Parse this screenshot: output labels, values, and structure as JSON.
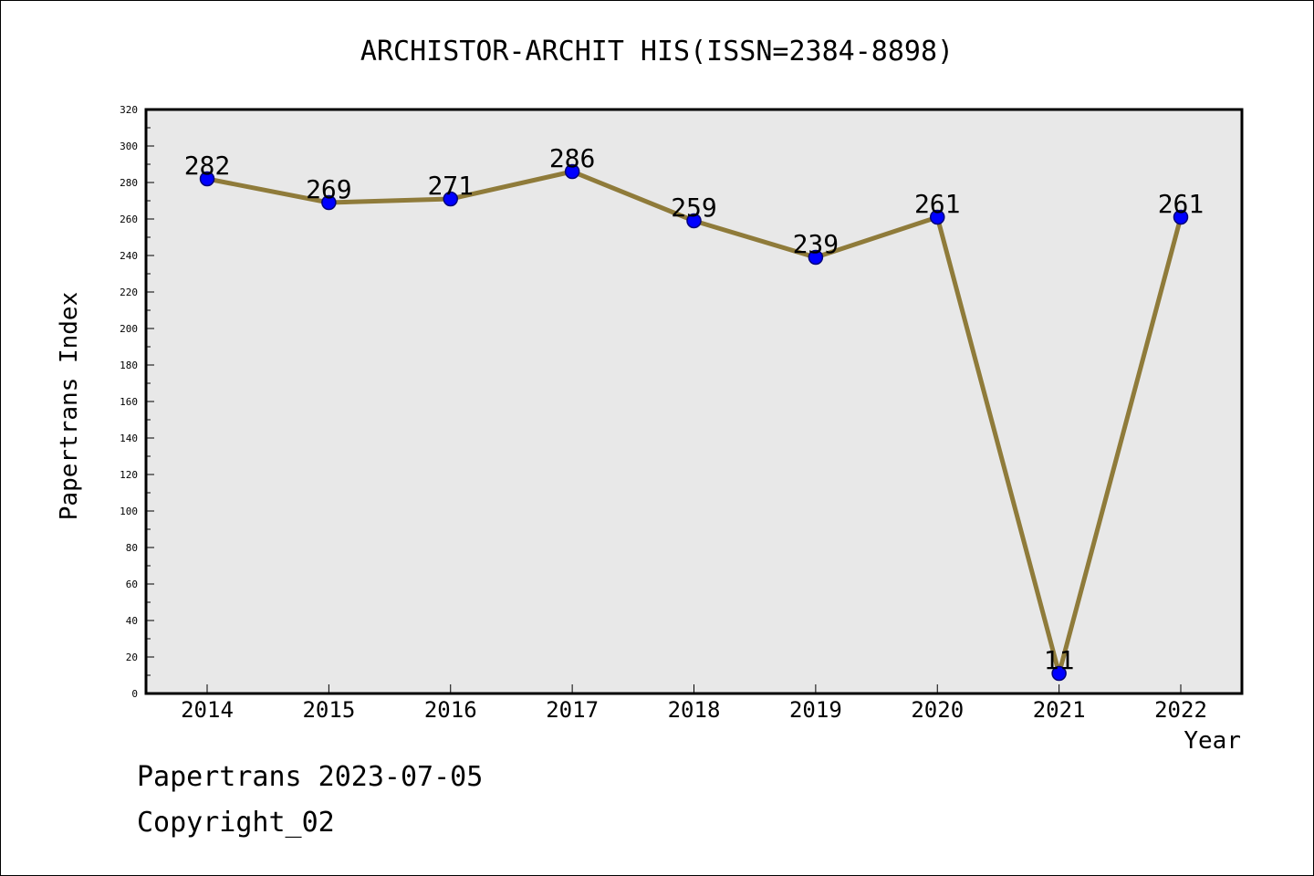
{
  "chart_data": {
    "type": "line",
    "title": "ARCHISTOR-ARCHIT HIS(ISSN=2384-8898)",
    "xlabel": "Year",
    "ylabel": "Papertrans Index",
    "categories": [
      "2014",
      "2015",
      "2016",
      "2017",
      "2018",
      "2019",
      "2020",
      "2021",
      "2022"
    ],
    "series": [
      {
        "values": [
          282,
          269,
          271,
          286,
          259,
          239,
          261,
          11,
          261
        ]
      }
    ],
    "ylim": [
      0,
      320
    ],
    "yticks": [
      0,
      20,
      40,
      60,
      80,
      100,
      120,
      140,
      160,
      180,
      200,
      220,
      240,
      260,
      280,
      300,
      320
    ],
    "data_labels": [
      "282",
      "269",
      "271",
      "286",
      "259",
      "239",
      "261",
      "11",
      "261"
    ],
    "colors": {
      "line": "#8f7b3a",
      "marker_fill": "#0000ff",
      "marker_stroke": "#00007a",
      "plot_background": "#e8e8e8"
    },
    "grid": false,
    "legend": "none"
  },
  "footer": {
    "line1": "Papertrans 2023-07-05",
    "line2": "Copyright_02"
  }
}
